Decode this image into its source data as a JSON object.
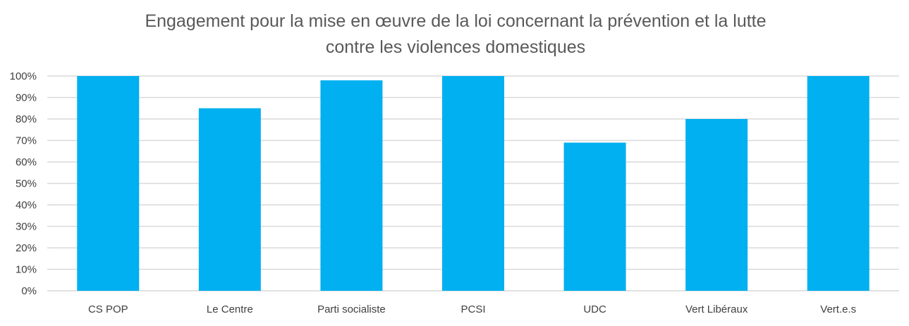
{
  "chart_data": {
    "type": "bar",
    "title": [
      "Engagement pour la mise en œuvre de la loi concernant la prévention et la lutte",
      "contre les violences domestiques"
    ],
    "categories": [
      "CS POP",
      "Le Centre",
      "Parti socialiste",
      "PCSI",
      "UDC",
      "Vert Libéraux",
      "Vert.e.s"
    ],
    "values": [
      100,
      85,
      98,
      100,
      69,
      80,
      100
    ],
    "yticks": [
      "0%",
      "10%",
      "20%",
      "30%",
      "40%",
      "50%",
      "60%",
      "70%",
      "80%",
      "90%",
      "100%"
    ],
    "ylim": [
      0,
      100
    ],
    "xlabel": "",
    "ylabel": "",
    "grid": true,
    "bar_color": "#00B0F0",
    "grid_color": "#D9D9D9"
  }
}
